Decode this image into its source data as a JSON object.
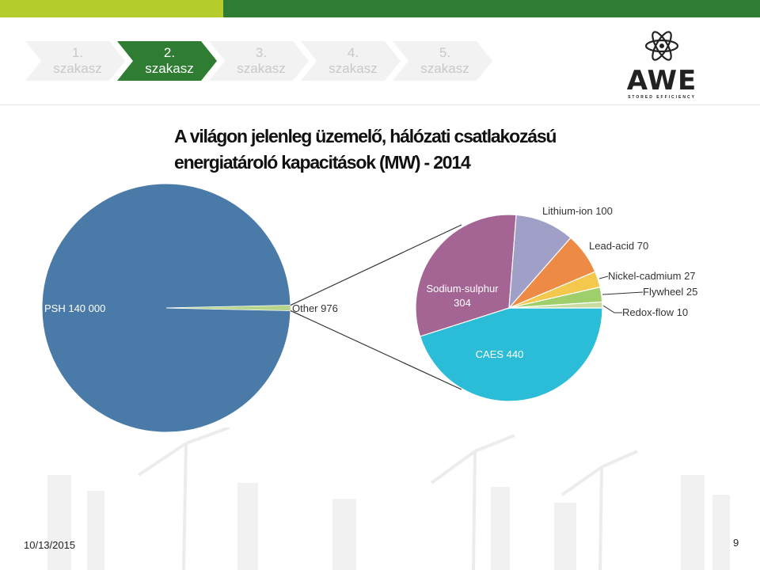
{
  "steps": [
    {
      "line1": "1.",
      "line2": "szakasz",
      "active": false
    },
    {
      "line1": "2.",
      "line2": "szakasz",
      "active": true
    },
    {
      "line1": "3.",
      "line2": "szakasz",
      "active": false
    },
    {
      "line1": "4.",
      "line2": "szakasz",
      "active": false
    },
    {
      "line1": "5.",
      "line2": "szakasz",
      "active": false
    }
  ],
  "logo": {
    "text": "AWE",
    "subtitle": "STORED EFFICIENCY"
  },
  "title": {
    "line1": "A világon jelenleg üzemelő, hálózati csatlakozású",
    "line2": "energiatároló kapacitások (MW) - 2014"
  },
  "footer": {
    "date": "10/13/2015",
    "page": "9"
  },
  "colors": {
    "bar_light": "#b5cc2c",
    "bar_dark": "#2e7d32",
    "step_active": "#2e7d32",
    "step_inactive": "#f2f2f2"
  },
  "chart_data": [
    {
      "type": "pie",
      "slices": [
        {
          "label": "PSH",
          "value": 140000,
          "display": "140 000",
          "color": "#4a7aa8"
        },
        {
          "label": "Other",
          "value": 976,
          "display": "976",
          "color": "#b6d48a"
        }
      ]
    },
    {
      "type": "pie",
      "slices": [
        {
          "label": "CAES",
          "value": 440,
          "display": "440",
          "color": "#2bbcd8"
        },
        {
          "label": "Sodium-sulphur",
          "value": 304,
          "display": "304",
          "color": "#a56594"
        },
        {
          "label": "Lithium-ion",
          "value": 100,
          "display": "100",
          "color": "#9f9fc8"
        },
        {
          "label": "Lead-acid",
          "value": 70,
          "display": "70",
          "color": "#ed8a45"
        },
        {
          "label": "Nickel-cadmium",
          "value": 27,
          "display": "27",
          "color": "#f4c84c"
        },
        {
          "label": "Flywheel",
          "value": 25,
          "display": "25",
          "color": "#9fcf6a"
        },
        {
          "label": "Redox-flow",
          "value": 10,
          "display": "10",
          "color": "#c8dca0"
        }
      ]
    }
  ]
}
